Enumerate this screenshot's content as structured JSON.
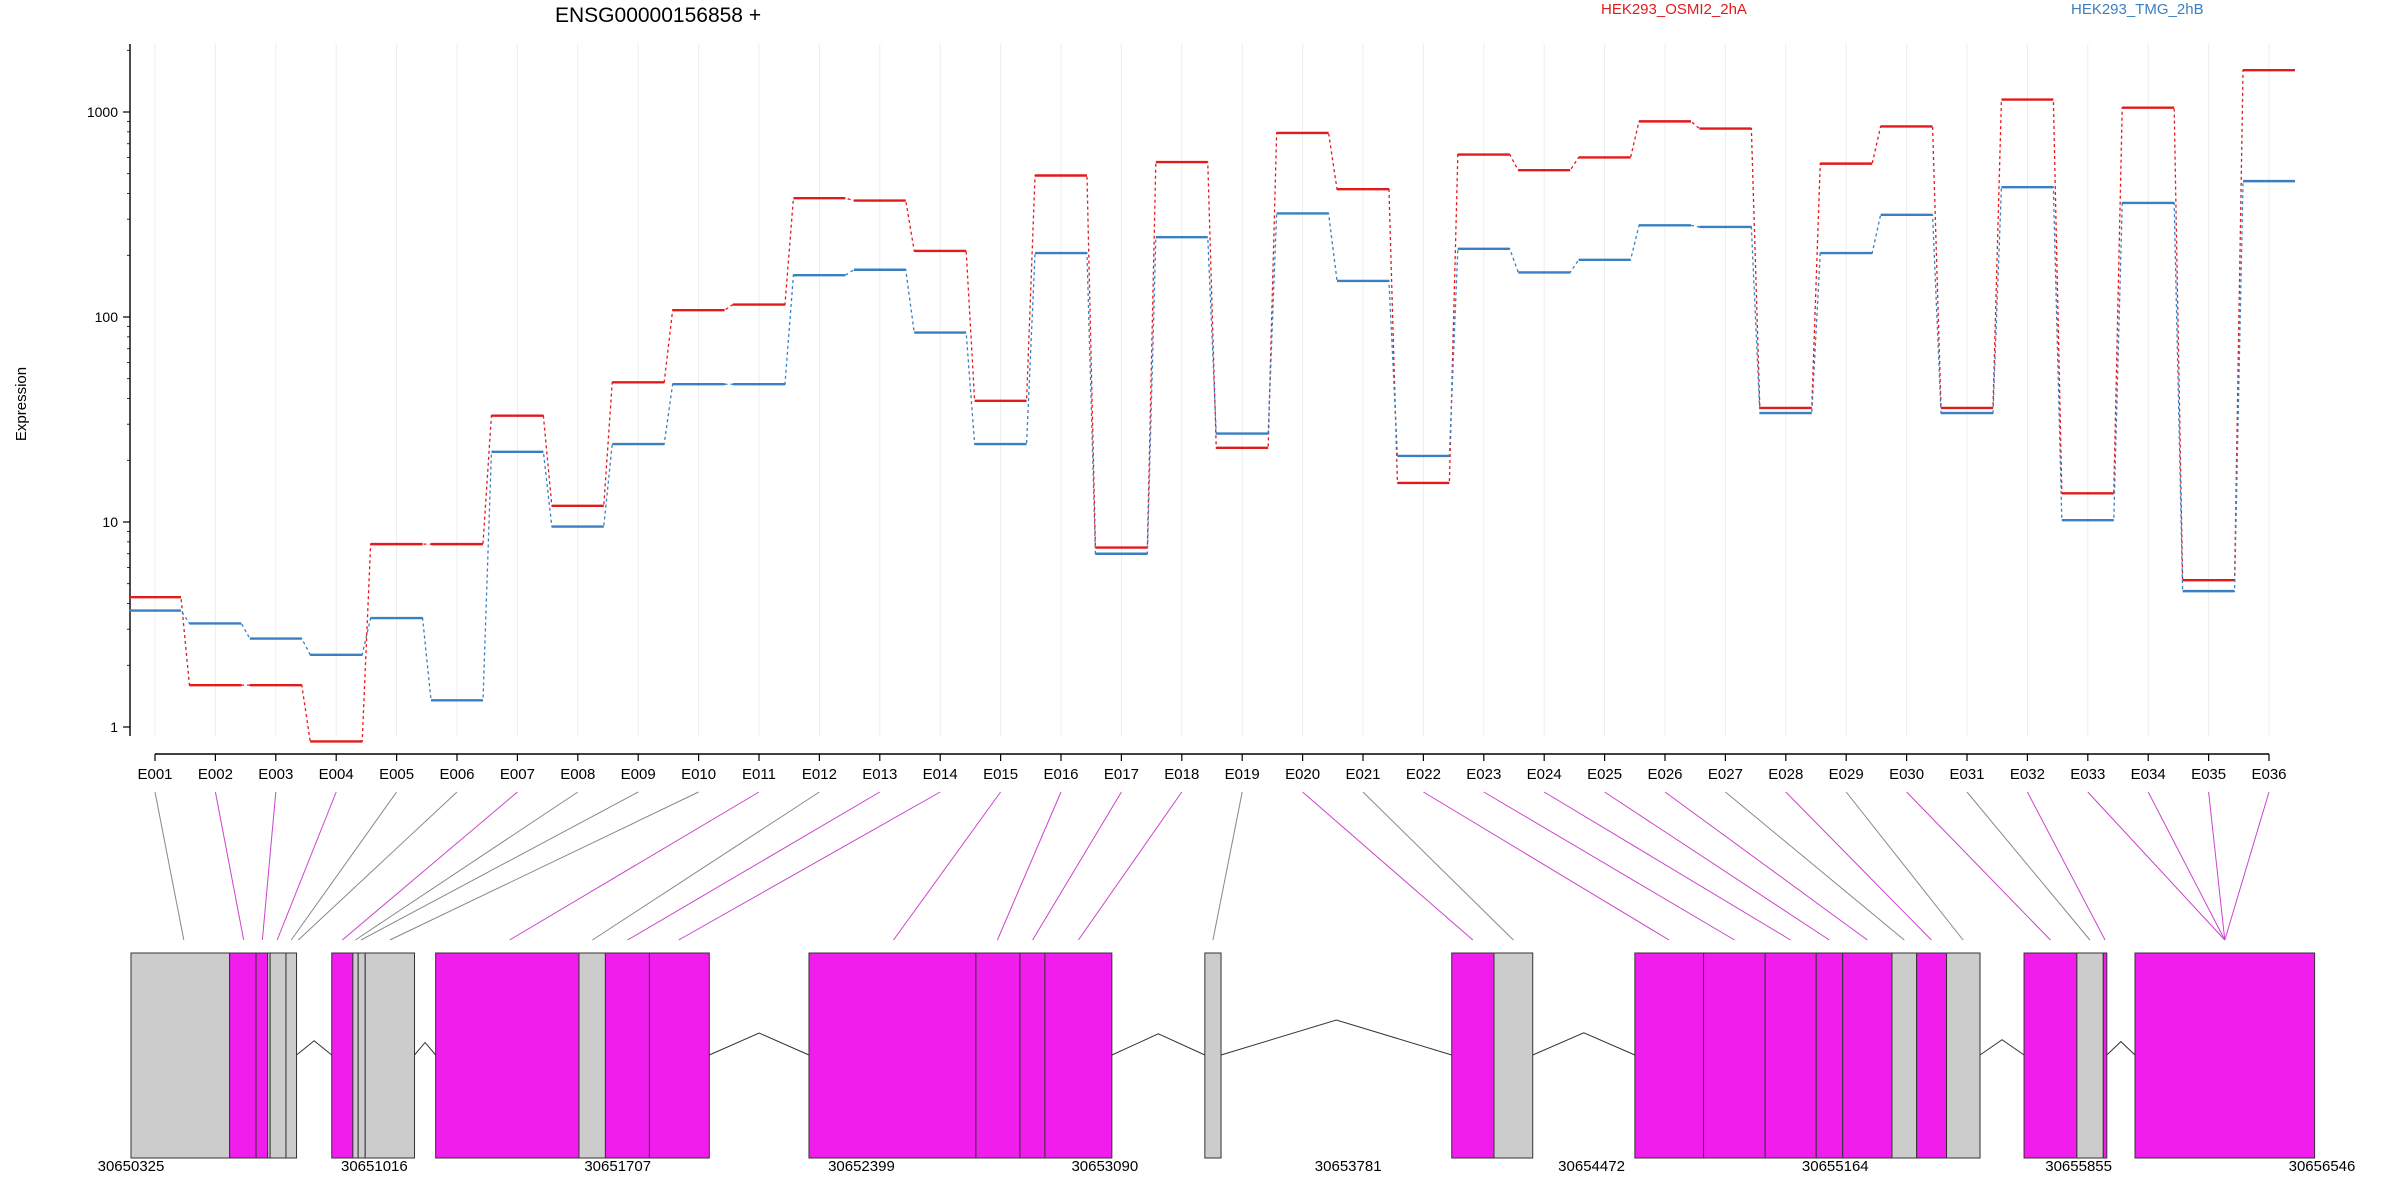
{
  "chart_data": {
    "type": "line",
    "title": "ENSG00000156858 +",
    "ylabel": "Expression",
    "yscale": "log",
    "ylim": [
      0.4,
      2200
    ],
    "yticks": [
      {
        "value": 1,
        "label": "1"
      },
      {
        "value": 10,
        "label": "10"
      },
      {
        "value": 100,
        "label": "100"
      },
      {
        "value": 1000,
        "label": "1000"
      }
    ],
    "categories": [
      "E001",
      "E002",
      "E003",
      "E004",
      "E005",
      "E006",
      "E007",
      "E008",
      "E009",
      "E010",
      "E011",
      "E012",
      "E013",
      "E014",
      "E015",
      "E016",
      "E017",
      "E018",
      "E019",
      "E020",
      "E021",
      "E022",
      "E023",
      "E024",
      "E025",
      "E026",
      "E027",
      "E028",
      "E029",
      "E030",
      "E031",
      "E032",
      "E033",
      "E034",
      "E035",
      "E036"
    ],
    "grid": "vertical-light",
    "legend_position": "top-right",
    "series": [
      {
        "name": "HEK293_OSMI2_2hA",
        "color": "#e31a1c",
        "values": [
          4.3,
          1.6,
          1.6,
          0.85,
          7.8,
          7.8,
          33,
          12,
          48,
          108,
          115,
          380,
          370,
          210,
          39,
          490,
          7.5,
          570,
          23,
          790,
          420,
          15.5,
          620,
          520,
          600,
          900,
          830,
          36,
          560,
          850,
          36,
          1150,
          13.8,
          1050,
          5.2,
          1600
        ]
      },
      {
        "name": "HEK293_TMG_2hB",
        "color": "#3a7fc1",
        "values": [
          3.7,
          3.2,
          2.7,
          2.25,
          3.4,
          1.35,
          22,
          9.5,
          24,
          47,
          47,
          160,
          170,
          84,
          24,
          205,
          7,
          245,
          27,
          320,
          150,
          21,
          215,
          165,
          190,
          280,
          275,
          34,
          205,
          315,
          34,
          430,
          10.2,
          360,
          4.6,
          460
        ]
      }
    ],
    "gene_model": {
      "coordinates": [
        "30650325",
        "30651016",
        "30651707",
        "30652399",
        "30653090",
        "30653781",
        "30654472",
        "30655164",
        "30655855",
        "30656546"
      ],
      "genomic_range": [
        30650325,
        30656546
      ],
      "exons": [
        {
          "start": 30650325,
          "end": 30650605,
          "color": "#cccccc"
        },
        {
          "start": 30650605,
          "end": 30650680,
          "color": "#f01ded"
        },
        {
          "start": 30650680,
          "end": 30650713,
          "color": "#f01ded"
        },
        {
          "start": 30650713,
          "end": 30650720,
          "color": "#cccccc"
        },
        {
          "start": 30650720,
          "end": 30650765,
          "color": "#cccccc"
        },
        {
          "start": 30650765,
          "end": 30650795,
          "color": "#cccccc"
        },
        {
          "start": 30650895,
          "end": 30650955,
          "color": "#f01ded"
        },
        {
          "start": 30650955,
          "end": 30650970,
          "color": "#cccccc"
        },
        {
          "start": 30650970,
          "end": 30650990,
          "color": "#cccccc"
        },
        {
          "start": 30650990,
          "end": 30651130,
          "color": "#cccccc"
        },
        {
          "start": 30651190,
          "end": 30651597,
          "color": "#f01ded"
        },
        {
          "start": 30651597,
          "end": 30651672,
          "color": "#cccccc"
        },
        {
          "start": 30651672,
          "end": 30651797,
          "color": "#f01ded"
        },
        {
          "start": 30651797,
          "end": 30651967,
          "color": "#f01ded"
        },
        {
          "start": 30652250,
          "end": 30652724,
          "color": "#f01ded"
        },
        {
          "start": 30652724,
          "end": 30652849,
          "color": "#f01ded"
        },
        {
          "start": 30652849,
          "end": 30652920,
          "color": "#f01ded"
        },
        {
          "start": 30652920,
          "end": 30653110,
          "color": "#f01ded"
        },
        {
          "start": 30653374,
          "end": 30653420,
          "color": "#cccccc"
        },
        {
          "start": 30654075,
          "end": 30654195,
          "color": "#f01ded"
        },
        {
          "start": 30654195,
          "end": 30654305,
          "color": "#cccccc"
        },
        {
          "start": 30654595,
          "end": 30654790,
          "color": "#f01ded"
        },
        {
          "start": 30654790,
          "end": 30654965,
          "color": "#f01ded"
        },
        {
          "start": 30654965,
          "end": 30655110,
          "color": "#f01ded"
        },
        {
          "start": 30655110,
          "end": 30655185,
          "color": "#f01ded"
        },
        {
          "start": 30655185,
          "end": 30655325,
          "color": "#f01ded"
        },
        {
          "start": 30655325,
          "end": 30655395,
          "color": "#cccccc"
        },
        {
          "start": 30655395,
          "end": 30655480,
          "color": "#f01ded"
        },
        {
          "start": 30655480,
          "end": 30655575,
          "color": "#cccccc"
        },
        {
          "start": 30655700,
          "end": 30655850,
          "color": "#f01ded"
        },
        {
          "start": 30655850,
          "end": 30655925,
          "color": "#cccccc"
        },
        {
          "start": 30655925,
          "end": 30655935,
          "color": "#f01ded"
        },
        {
          "start": 30656015,
          "end": 30656525,
          "color": "#f01ded"
        }
      ],
      "exon_links": [
        {
          "to": 30650475,
          "color": "#888888"
        },
        {
          "to": 30650645,
          "color": "#cc44cc"
        },
        {
          "to": 30650698,
          "color": "#cc44cc"
        },
        {
          "to": 30650740,
          "color": "#cc44cc"
        },
        {
          "to": 30650780,
          "color": "#888888"
        },
        {
          "to": 30650800,
          "color": "#888888"
        },
        {
          "to": 30650925,
          "color": "#cc44cc"
        },
        {
          "to": 30650962,
          "color": "#888888"
        },
        {
          "to": 30650978,
          "color": "#888888"
        },
        {
          "to": 30651060,
          "color": "#888888"
        },
        {
          "to": 30651400,
          "color": "#cc44cc"
        },
        {
          "to": 30651635,
          "color": "#888888"
        },
        {
          "to": 30651735,
          "color": "#cc44cc"
        },
        {
          "to": 30651880,
          "color": "#cc44cc"
        },
        {
          "to": 30652490,
          "color": "#cc44cc"
        },
        {
          "to": 30652785,
          "color": "#cc44cc"
        },
        {
          "to": 30652885,
          "color": "#cc44cc"
        },
        {
          "to": 30653015,
          "color": "#cc44cc"
        },
        {
          "to": 30653397,
          "color": "#888888"
        },
        {
          "to": 30654135,
          "color": "#cc44cc"
        },
        {
          "to": 30654250,
          "color": "#888888"
        },
        {
          "to": 30654692,
          "color": "#cc44cc"
        },
        {
          "to": 30654878,
          "color": "#cc44cc"
        },
        {
          "to": 30655037,
          "color": "#cc44cc"
        },
        {
          "to": 30655147,
          "color": "#cc44cc"
        },
        {
          "to": 30655255,
          "color": "#cc44cc"
        },
        {
          "to": 30655360,
          "color": "#888888"
        },
        {
          "to": 30655437,
          "color": "#cc44cc"
        },
        {
          "to": 30655527,
          "color": "#888888"
        },
        {
          "to": 30655775,
          "color": "#cc44cc"
        },
        {
          "to": 30655887,
          "color": "#888888"
        },
        {
          "to": 30655930,
          "color": "#cc44cc"
        },
        {
          "to": 30656270,
          "color": "#cc44cc"
        }
      ]
    }
  }
}
